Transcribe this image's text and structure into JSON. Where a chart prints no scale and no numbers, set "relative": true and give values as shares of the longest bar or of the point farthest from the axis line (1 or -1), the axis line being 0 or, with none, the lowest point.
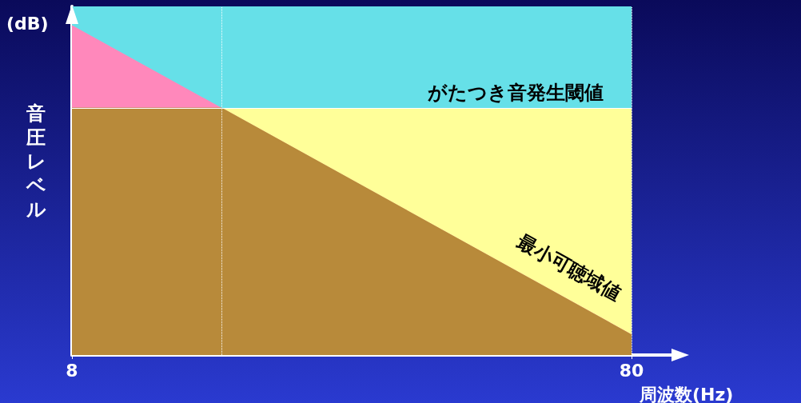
{
  "chart_data": {
    "type": "area",
    "relative": true,
    "log": "x",
    "xlabel": "周波数(Hz)",
    "ylabel": "音圧レベル",
    "annotations": [
      "(dB)"
    ],
    "xlim": [
      8,
      80
    ],
    "xticks": [
      8,
      80
    ],
    "grid": false,
    "legend": false,
    "marker": "none",
    "series": [
      {
        "name": "最小可聴域値",
        "color": "#ff88bb",
        "x": [
          8,
          80
        ],
        "values": [
          1,
          0.06
        ]
      },
      {
        "color": "#b88a3a",
        "x": [
          8,
          14.8,
          80
        ],
        "values": [
          0.75,
          0.75,
          0.06
        ]
      }
    ],
    "bands": [
      {
        "axis": "x",
        "from": 14.8,
        "to": 80,
        "color": "#ffff99"
      },
      {
        "axis": "y",
        "from": 0.75,
        "to": 1.06,
        "color": "#66e0e8"
      }
    ],
    "ref_lines": [
      {
        "axis": "y",
        "value": 0.75,
        "color": "#ffffff",
        "line_style": "solid",
        "label": "がたつき音発生閾値"
      },
      {
        "axis": "x",
        "value": 14.8,
        "color": "#ffffff",
        "line_style": "dotted"
      },
      {
        "axis": "x",
        "value": 80,
        "color": "#ffffff",
        "line_style": "dotted"
      }
    ]
  }
}
